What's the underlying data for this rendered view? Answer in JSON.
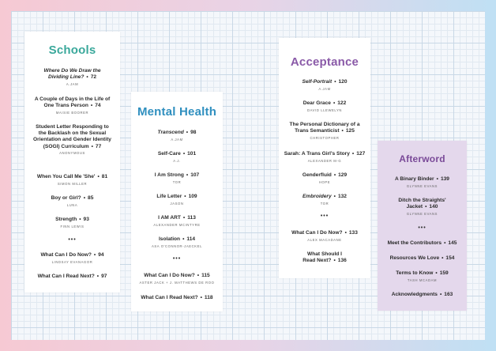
{
  "colors": {
    "schools": "#3aa89b",
    "mental": "#2f8fbf",
    "acceptance": "#8a5aa8",
    "afterword": "#7a4a98"
  },
  "schools": {
    "title": "Schools",
    "entries": [
      {
        "title": "Where Do We Draw the Dividing Line?",
        "page": "72",
        "author": "A.JAM",
        "italic": true
      },
      {
        "title": "A Couple of Days in the Life of One Trans Person",
        "page": "74",
        "author": "MAISIE BOORER"
      },
      {
        "title": "Student Letter Responding to the Backlash on the Sexual Orientation and Gender Identity (SOGI) Curriculum",
        "page": "77",
        "author": "ANONYMOUS"
      },
      {
        "title": "When You Call Me 'She'",
        "page": "81",
        "author": "SIMON MILLER"
      },
      {
        "title": "Boy or Girl?",
        "page": "85",
        "author": "LUNA"
      },
      {
        "title": "Strength",
        "page": "93",
        "author": "FINN LEWIS"
      },
      {
        "title": "What Can I Do Now?",
        "page": "94",
        "author": "LINDSAY EVANAGOR"
      },
      {
        "title": "What Can I Read Next?",
        "page": "97",
        "author": ""
      }
    ]
  },
  "mental": {
    "title": "Mental Health",
    "entries": [
      {
        "title": "Transcend",
        "page": "98",
        "author": "A.JAM",
        "italic": true
      },
      {
        "title": "Self-Care",
        "page": "101",
        "author": "A.J."
      },
      {
        "title": "I Am Strong",
        "page": "107",
        "author": "TOR"
      },
      {
        "title": "Life Letter",
        "page": "109",
        "author": "JASON"
      },
      {
        "title": "I AM ART",
        "page": "113",
        "author": "ALEXANDER MCINTYRE"
      },
      {
        "title": "Isolation",
        "page": "114",
        "author": "ASA O'CONNOR-JAECKEL"
      },
      {
        "title": "What Can I Do Now?",
        "page": "115",
        "author": "ASTER JACK + J. MATTHEWS DE ROO"
      },
      {
        "title": "What Can I Read Next?",
        "page": "118",
        "author": ""
      }
    ]
  },
  "acceptance": {
    "title": "Acceptance",
    "entries": [
      {
        "title": "Self-Portrait",
        "page": "120",
        "author": "A.JAM",
        "italic": true
      },
      {
        "title": "Dear Grace",
        "page": "122",
        "author": "DAVID LLEWELYN"
      },
      {
        "title": "The Personal Dictionary of a Trans Semanticist",
        "page": "125",
        "author": "CHRISTOPHER"
      },
      {
        "title": "Sarah: A Trans Girl's Story",
        "page": "127",
        "author": "ALEXANDER M-G"
      },
      {
        "title": "Genderfluid",
        "page": "129",
        "author": "HOPE"
      },
      {
        "title": "Embroidery",
        "page": "132",
        "author": "TOR",
        "italic": true
      },
      {
        "title": "What Can I Do Now?",
        "page": "133",
        "author": "ALEX MACADANE"
      },
      {
        "title": "What Should I Read Next?",
        "page": "136",
        "author": ""
      }
    ]
  },
  "afterword": {
    "title": "Afterword",
    "entries": [
      {
        "title": "A Binary Binder",
        "page": "139",
        "author": "GLYNNE EVANS"
      },
      {
        "title": "Ditch the Straights' Jacket",
        "page": "140",
        "author": "GLYNNE EVANS"
      },
      {
        "title": "Meet the Contributors",
        "page": "145",
        "author": ""
      },
      {
        "title": "Resources We Love",
        "page": "154",
        "author": ""
      },
      {
        "title": "Terms to Know",
        "page": "159",
        "author": "TASH MCADAM"
      },
      {
        "title": "Acknowledgments",
        "page": "163",
        "author": ""
      }
    ]
  },
  "dots": "•••",
  "sep": "•"
}
